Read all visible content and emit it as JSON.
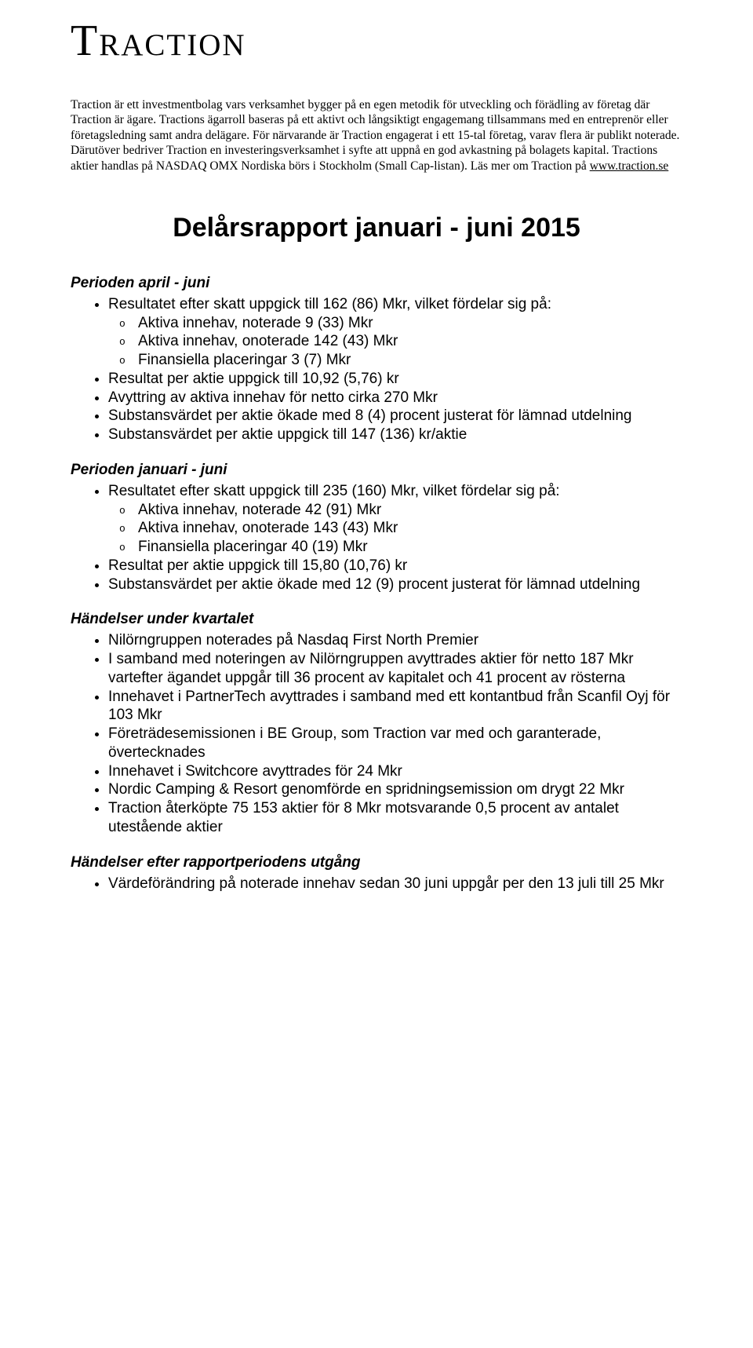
{
  "logo_text": "Traction",
  "intro_text": "Traction är ett investmentbolag vars verksamhet bygger på en egen metodik för utveckling och förädling av företag där Traction är ägare. Tractions ägarroll baseras på ett aktivt och långsiktigt engagemang tillsammans med en entreprenör eller företagsledning samt andra delägare. För närvarande är Traction engagerat i ett 15-tal företag, varav flera är publikt noterade. Därutöver bedriver Traction en investeringsverksamhet i syfte att uppnå en god avkastning på bolagets kapital. Tractions aktier handlas på NASDAQ OMX Nordiska börs i Stockholm (Small Cap-listan). Läs mer om Traction på ",
  "intro_link_text": "www.traction.se",
  "main_title": "Delårsrapport januari - juni 2015",
  "sections": [
    {
      "heading": "Perioden april - juni",
      "items": [
        {
          "text": "Resultatet efter skatt uppgick till 162 (86) Mkr, vilket fördelar sig på:",
          "sub": [
            "Aktiva innehav, noterade 9 (33) Mkr",
            "Aktiva innehav, onoterade 142 (43) Mkr",
            "Finansiella placeringar 3 (7) Mkr"
          ]
        },
        {
          "text": "Resultat per aktie uppgick till 10,92 (5,76) kr"
        },
        {
          "text": "Avyttring av aktiva innehav för netto cirka 270 Mkr"
        },
        {
          "text": "Substansvärdet per aktie ökade med 8 (4) procent justerat för lämnad utdelning"
        },
        {
          "text": "Substansvärdet per aktie uppgick till 147 (136) kr/aktie"
        }
      ]
    },
    {
      "heading": "Perioden januari - juni",
      "items": [
        {
          "text": "Resultatet efter skatt uppgick till 235 (160) Mkr, vilket fördelar sig på:",
          "sub": [
            "Aktiva innehav, noterade 42 (91) Mkr",
            "Aktiva innehav, onoterade 143 (43) Mkr",
            "Finansiella placeringar 40 (19) Mkr"
          ]
        },
        {
          "text": "Resultat per aktie uppgick till 15,80 (10,76) kr"
        },
        {
          "text": "Substansvärdet per aktie ökade med 12 (9) procent justerat för lämnad utdelning"
        }
      ]
    },
    {
      "heading": "Händelser under kvartalet",
      "items": [
        {
          "text": "Nilörngruppen noterades på Nasdaq First North Premier"
        },
        {
          "text": "I samband med noteringen av Nilörngruppen avyttrades aktier för netto 187 Mkr vartefter ägandet uppgår till 36 procent av kapitalet och 41 procent av rösterna"
        },
        {
          "text": "Innehavet i PartnerTech avyttrades i samband med ett kontantbud från Scanfil Oyj för 103 Mkr"
        },
        {
          "text": "Företrädesemissionen i BE Group, som Traction var med och garanterade, övertecknades"
        },
        {
          "text": "Innehavet i Switchcore avyttrades för 24 Mkr"
        },
        {
          "text": "Nordic Camping & Resort genomförde en spridningsemission om drygt 22 Mkr"
        },
        {
          "text": "Traction återköpte 75 153 aktier för 8 Mkr motsvarande 0,5 procent av antalet utestående aktier"
        }
      ]
    },
    {
      "heading": "Händelser efter rapportperiodens utgång",
      "items": [
        {
          "text": "Värdeförändring på noterade innehav sedan 30 juni uppgår per den 13 juli till 25 Mkr"
        }
      ]
    }
  ],
  "typography": {
    "logo_fontsize": 56,
    "intro_fontsize": 15.5,
    "title_fontsize": 34,
    "heading_fontsize": 19,
    "body_fontsize": 19
  },
  "colors": {
    "background": "#ffffff",
    "text": "#000000"
  }
}
